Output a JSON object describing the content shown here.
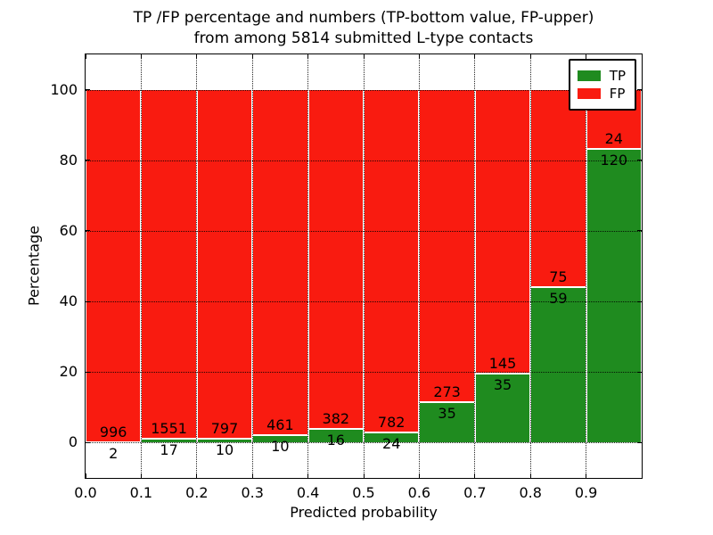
{
  "chart_data": {
    "type": "bar",
    "stacked": true,
    "normalized_to_percent": true,
    "title_lines": [
      "TP /FP percentage and numbers (TP-bottom value, FP-upper)",
      "from among 5814 submitted L-type contacts"
    ],
    "xlabel": "Predicted probability",
    "ylabel": "Percentage",
    "xlim": [
      0.0,
      1.0
    ],
    "ylim": [
      -10,
      110
    ],
    "bin_width": 0.1,
    "bin_starts": [
      0.0,
      0.1,
      0.2,
      0.3,
      0.4,
      0.5,
      0.6,
      0.7,
      0.8,
      0.9
    ],
    "x_ticks": [
      {
        "value": 0.0,
        "label": "0.0"
      },
      {
        "value": 0.1,
        "label": "0.1"
      },
      {
        "value": 0.2,
        "label": "0.2"
      },
      {
        "value": 0.3,
        "label": "0.3"
      },
      {
        "value": 0.4,
        "label": "0.4"
      },
      {
        "value": 0.5,
        "label": "0.5"
      },
      {
        "value": 0.6,
        "label": "0.6"
      },
      {
        "value": 0.7,
        "label": "0.7"
      },
      {
        "value": 0.8,
        "label": "0.8"
      },
      {
        "value": 0.9,
        "label": "0.9"
      }
    ],
    "y_ticks": [
      {
        "value": 0,
        "label": "0"
      },
      {
        "value": 20,
        "label": "20"
      },
      {
        "value": 40,
        "label": "40"
      },
      {
        "value": 60,
        "label": "60"
      },
      {
        "value": 80,
        "label": "80"
      },
      {
        "value": 100,
        "label": "100"
      }
    ],
    "grid": {
      "style": "dotted",
      "color": "#000000"
    },
    "series": [
      {
        "name": "TP",
        "color": "#1f8b1f",
        "counts": [
          2,
          17,
          10,
          10,
          16,
          24,
          35,
          35,
          59,
          120
        ]
      },
      {
        "name": "FP",
        "color": "#f91b10",
        "counts": [
          996,
          1551,
          797,
          461,
          382,
          782,
          273,
          145,
          75,
          24
        ]
      }
    ],
    "legend": {
      "position": "upper right",
      "entries": [
        {
          "label": "TP",
          "color": "#1f8b1f"
        },
        {
          "label": "FP",
          "color": "#f91b10"
        }
      ]
    }
  }
}
